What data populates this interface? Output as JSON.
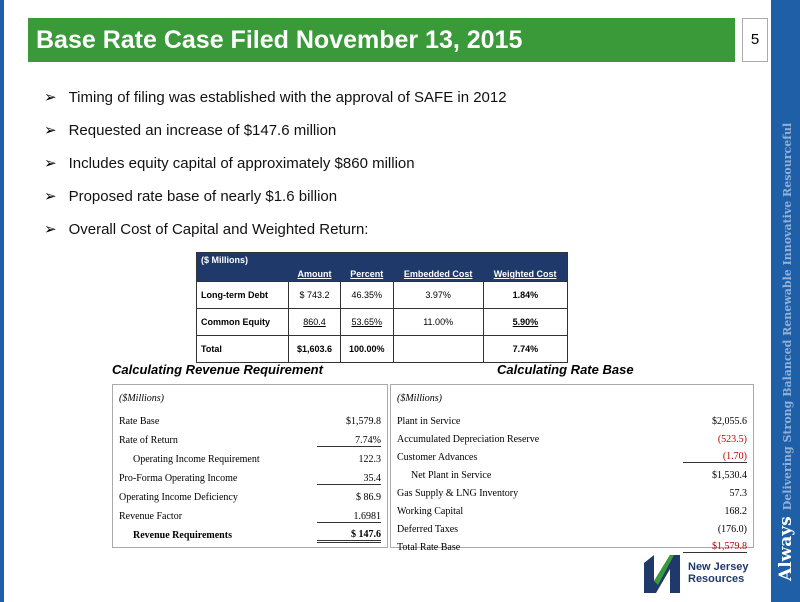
{
  "header": {
    "title": "Base Rate Case Filed November 13, 2015",
    "page": "5"
  },
  "bullets": [
    "Timing of filing was established with the approval of SAFE in 2012",
    "Requested an increase of $147.6 million",
    "Includes equity capital of approximately $860 million",
    "Proposed rate base of nearly $1.6 billion",
    "Overall Cost of Capital and Weighted Return:"
  ],
  "cost_table": {
    "columns": [
      "($ Millions)",
      "Amount",
      "Percent",
      "Embedded Cost",
      "Weighted Cost"
    ],
    "rows": [
      [
        "Long-term Debt",
        "$   743.2",
        "46.35%",
        "3.97%",
        "1.84%"
      ],
      [
        "Common Equity",
        "860.4",
        "53.65%",
        "11.00%",
        "5.90%"
      ],
      [
        "Total",
        "$1,603.6",
        "100.00%",
        "",
        "7.74%"
      ]
    ]
  },
  "revenue": {
    "title": "Calculating Revenue Requirement",
    "unit": "($Millions)",
    "rows": [
      [
        "Rate Base",
        "$1,579.8"
      ],
      [
        "Rate of Return",
        "7.74%"
      ],
      [
        "Operating Income Requirement",
        "122.3"
      ],
      [
        "Pro-Forma Operating Income",
        "35.4"
      ],
      [
        "Operating Income Deficiency",
        "$    86.9"
      ],
      [
        "Revenue Factor",
        "1.6981"
      ],
      [
        "Revenue Requirements",
        "$   147.6"
      ]
    ]
  },
  "rate_base": {
    "title": "Calculating Rate Base",
    "unit": "($Millions)",
    "rows": [
      [
        "Plant in Service",
        "$2,055.6"
      ],
      [
        "Accumulated Depreciation Reserve",
        "(523.5)"
      ],
      [
        "Customer Advances",
        "(1.70)"
      ],
      [
        "Net Plant in Service",
        "$1,530.4"
      ],
      [
        "Gas Supply & LNG Inventory",
        "57.3"
      ],
      [
        "Working Capital",
        "168.2"
      ],
      [
        "Deferred Taxes",
        "(176.0)"
      ],
      [
        "Total Rate Base",
        "$1,579.8"
      ]
    ]
  },
  "logo": {
    "name": "New Jersey Resources"
  },
  "banner": {
    "word": "Always",
    "tagline": "Delivering Strong Balanced Renewable Innovative Resourceful"
  }
}
